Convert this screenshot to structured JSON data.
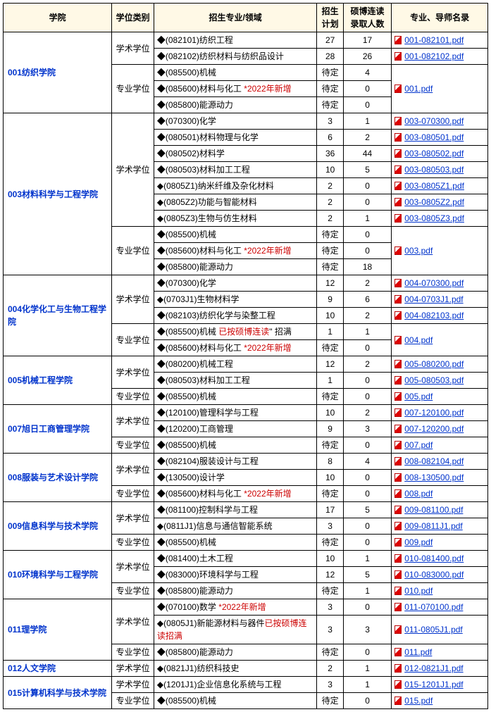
{
  "headers": {
    "college": "学院",
    "degree": "学位类别",
    "major": "招生专业/领域",
    "plan": "招生计划",
    "sb": "硕博连读录取人数",
    "pdf": "专业、导师名录"
  },
  "labels": {
    "xueshu": "学术学位",
    "zhuanye": "专业学位",
    "daiding": "待定"
  },
  "c001": {
    "name": "001纺织学院",
    "m1": "(082101)纺织工程",
    "p1": "27",
    "s1": "17",
    "pdf1": "001-082101.pdf",
    "m2": "(082102)纺织材料与纺织品设计",
    "p2": "28",
    "s2": "26",
    "pdf2": "001-082102.pdf",
    "m3": "(085500)机械",
    "p3": "待定",
    "s3": "4",
    "m4a": "(085600)材料与化工",
    "m4b": "*2022年新增",
    "p4": "待定",
    "s4": "0",
    "m5": "(085800)能源动力",
    "p5": "待定",
    "s5": "0",
    "pdfB": "001.pdf"
  },
  "c003": {
    "name": "003材料科学与工程学院",
    "m1": "(070300)化学",
    "p1": "3",
    "s1": "1",
    "pdf1": "003-070300.pdf",
    "m2": "(080501)材料物理与化学",
    "p2": "6",
    "s2": "2",
    "pdf2": "003-080501.pdf",
    "m3": "(080502)材料学",
    "p3": "36",
    "s3": "44",
    "pdf3": "003-080502.pdf",
    "m4": "(080503)材料加工工程",
    "p4": "10",
    "s4": "5",
    "pdf4": "003-080503.pdf",
    "m5": "(0805Z1)纳米纤维及杂化材料",
    "p5": "2",
    "s5": "0",
    "pdf5": "003-0805Z1.pdf",
    "m6": "(0805Z2)功能与智能材料",
    "p6": "2",
    "s6": "0",
    "pdf6": "003-0805Z2.pdf",
    "m7": "(0805Z3)生物与仿生材料",
    "p7": "2",
    "s7": "1",
    "pdf7": "003-0805Z3.pdf",
    "m8": "(085500)机械",
    "p8": "待定",
    "s8": "0",
    "m9a": "(085600)材料与化工",
    "m9b": "*2022年新增",
    "p9": "待定",
    "s9": "0",
    "m10": "(085800)能源动力",
    "p10": "待定",
    "s10": "18",
    "pdfB": "003.pdf"
  },
  "c004": {
    "name": "004化学化工与生物工程学院",
    "m1": "(070300)化学",
    "p1": "12",
    "s1": "2",
    "pdf1": "004-070300.pdf",
    "m2": "(0703J1)生物材料学",
    "p2": "9",
    "s2": "6",
    "pdf2": "004-0703J1.pdf",
    "m3": "(082103)纺织化学与染整工程",
    "p3": "10",
    "s3": "2",
    "pdf3": "004-082103.pdf",
    "m4a": "(085500)机械",
    "m4b": "已按硕博连读",
    "m4c": "招满",
    "p4": "1",
    "s4": "1",
    "m5a": "(085600)材料与化工",
    "m5b": "*2022年新增",
    "p5": "待定",
    "s5": "0",
    "pdfB": "004.pdf"
  },
  "c005": {
    "name": "005机械工程学院",
    "m1": "(080200)机械工程",
    "p1": "12",
    "s1": "2",
    "pdf1": "005-080200.pdf",
    "m2": "(080503)材料加工工程",
    "p2": "1",
    "s2": "0",
    "pdf2": "005-080503.pdf",
    "m3": "(085500)机械",
    "p3": "待定",
    "s3": "0",
    "pdf3": "005.pdf"
  },
  "c007": {
    "name": "007旭日工商管理学院",
    "m1": "(120100)管理科学与工程",
    "p1": "10",
    "s1": "2",
    "pdf1": "007-120100.pdf",
    "m2": "(120200)工商管理",
    "p2": "9",
    "s2": "3",
    "pdf2": "007-120200.pdf",
    "m3": "(085500)机械",
    "p3": "待定",
    "s3": "0",
    "pdf3": "007.pdf"
  },
  "c008": {
    "name": "008服装与艺术设计学院",
    "m1": "(082104)服装设计与工程",
    "p1": "8",
    "s1": "4",
    "pdf1": "008-082104.pdf",
    "m2": "(130500)设计学",
    "p2": "10",
    "s2": "0",
    "pdf2": "008-130500.pdf",
    "m3a": "(085600)材料与化工",
    "m3b": "*2022年新增",
    "p3": "待定",
    "s3": "0",
    "pdf3": "008.pdf"
  },
  "c009": {
    "name": "009信息科学与技术学院",
    "m1": "(081100)控制科学与工程",
    "p1": "17",
    "s1": "5",
    "pdf1": "009-081100.pdf",
    "m2": "(0811J1)信息与通信智能系统",
    "p2": "3",
    "s2": "0",
    "pdf2": "009-0811J1.pdf",
    "m3": "(085500)机械",
    "p3": "待定",
    "s3": "0",
    "pdf3": "009.pdf"
  },
  "c010": {
    "name": "010环境科学与工程学院",
    "m1": "(081400)土木工程",
    "p1": "10",
    "s1": "1",
    "pdf1": "010-081400.pdf",
    "m2": "(083000)环境科学与工程",
    "p2": "12",
    "s2": "5",
    "pdf2": "010-083000.pdf",
    "m3": "(085800)能源动力",
    "p3": "待定",
    "s3": "1",
    "pdf3": "010.pdf"
  },
  "c011": {
    "name": "011理学院",
    "m1a": "(070100)数学",
    "m1b": "*2022年新增",
    "p1": "3",
    "s1": "0",
    "pdf1": "011-070100.pdf",
    "m2a": "(0805J1)新能源材料与器件",
    "m2b": "已按硕博连读招满",
    "p2": "3",
    "s2": "3",
    "pdf2": "011-0805J1.pdf",
    "m3": "(085800)能源动力",
    "p3": "待定",
    "s3": "0",
    "pdf3": "011.pdf"
  },
  "c012": {
    "name": "012人文学院",
    "m1": "(0821J1)纺织科技史",
    "p1": "2",
    "s1": "1",
    "pdf1": "012-0821J1.pdf"
  },
  "c015": {
    "name": "015计算机科学与技术学院",
    "m1": "(1201J1)企业信息化系统与工程",
    "p1": "3",
    "s1": "1",
    "pdf1": "015-1201J1.pdf",
    "m2": "(085500)机械",
    "p2": "待定",
    "s2": "0",
    "pdf2": "015.pdf"
  }
}
